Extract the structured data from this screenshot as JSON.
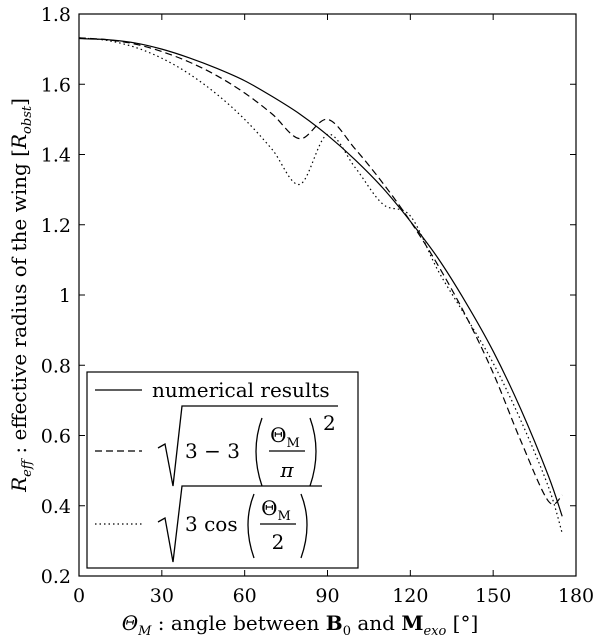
{
  "chart_data": {
    "type": "line",
    "xlabel": "Θ_M : angle between B_0 and M_exo [°]",
    "ylabel": "R_eff : effective radius of the wing [R_obst]",
    "xlim": [
      0,
      180
    ],
    "ylim": [
      0.2,
      1.8
    ],
    "x_ticks": [
      "0",
      "30",
      "60",
      "90",
      "120",
      "150",
      "180"
    ],
    "y_ticks": [
      "0.2",
      "0.4",
      "0.6",
      "0.8",
      "1",
      "1.2",
      "1.4",
      "1.6",
      "1.8"
    ],
    "grid": false,
    "legend_position": "bottom-left",
    "series": [
      {
        "name": "numerical results",
        "style": "solid",
        "x": [
          0,
          10,
          20,
          30,
          40,
          50,
          60,
          70,
          80,
          90,
          100,
          110,
          120,
          130,
          140,
          150,
          160,
          170,
          175
        ],
        "y": [
          1.73,
          1.727,
          1.718,
          1.7,
          1.675,
          1.645,
          1.61,
          1.565,
          1.515,
          1.455,
          1.385,
          1.305,
          1.21,
          1.105,
          0.98,
          0.84,
          0.675,
          0.485,
          0.37
        ]
      },
      {
        "name": "sqrt(3 - 3 (Θ_M/π)^2)",
        "style": "dashed",
        "x": [
          0,
          10,
          20,
          30,
          40,
          50,
          60,
          70,
          80,
          90,
          100,
          110,
          120,
          130,
          140,
          150,
          160,
          170,
          175
        ],
        "y": [
          1.732,
          1.727,
          1.715,
          1.693,
          1.663,
          1.624,
          1.575,
          1.515,
          1.445,
          1.5,
          1.416,
          1.319,
          1.21,
          1.085,
          0.942,
          0.778,
          0.585,
          0.413,
          0.43
        ]
      },
      {
        "name": "sqrt(3 cos(Θ_M/2))",
        "style": "dotted",
        "x": [
          0,
          10,
          20,
          30,
          40,
          50,
          60,
          70,
          80,
          90,
          100,
          110,
          120,
          130,
          140,
          150,
          160,
          170,
          175
        ],
        "y": [
          1.732,
          1.725,
          1.706,
          1.674,
          1.629,
          1.571,
          1.5,
          1.414,
          1.315,
          1.457,
          1.363,
          1.259,
          1.225,
          1.07,
          0.94,
          0.806,
          0.643,
          0.454,
          0.322
        ]
      }
    ]
  },
  "legend": {
    "entry1": "numerical results",
    "entry2": {
      "prefix": "3 − 3",
      "numerator": "Θ",
      "numerator_sub": "M",
      "denominator": "π",
      "power": "2"
    },
    "entry3": {
      "prefix": "3 cos",
      "numerator": "Θ",
      "numerator_sub": "M",
      "denominator": "2"
    }
  }
}
